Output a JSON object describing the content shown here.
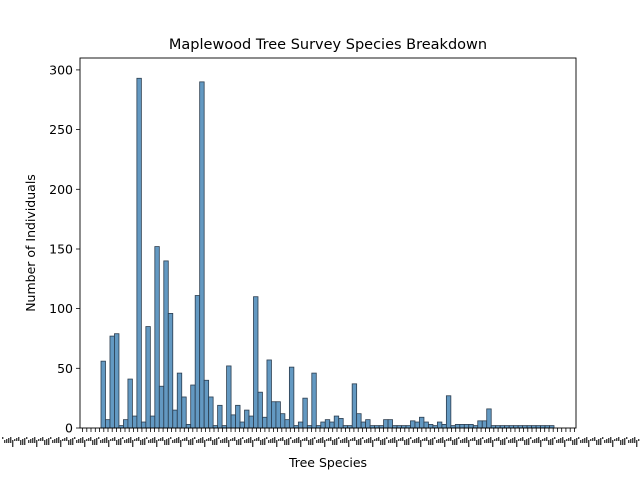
{
  "chart_data": {
    "type": "bar",
    "title": "Maplewood Tree Survey Species Breakdown",
    "xlabel": "Tree Species",
    "ylabel": "Number of Individuals",
    "ylim": [
      0,
      310
    ],
    "yticks": [
      0,
      50,
      100,
      150,
      200,
      250,
      300
    ],
    "grid": false,
    "legend": "none",
    "x_tick_labels_legible": false,
    "bar_color": "#5b93bf",
    "bar_edge_color": "#2b3d4f",
    "series": [
      {
        "values": [
          56,
          7,
          77,
          79,
          2,
          7,
          41,
          10,
          293,
          5,
          85,
          10,
          152,
          35,
          140,
          96,
          15,
          46,
          26,
          3,
          36,
          111,
          290,
          40,
          26,
          2,
          19,
          2,
          52,
          11,
          19,
          5,
          15,
          10,
          110,
          30,
          9,
          57,
          22,
          22,
          12,
          7,
          51,
          2,
          5,
          25,
          2,
          46,
          2,
          5,
          7,
          5,
          10,
          8,
          2,
          2,
          37,
          12,
          5,
          7,
          2,
          2,
          2,
          7,
          7,
          2,
          2,
          2,
          2,
          6,
          5,
          9,
          5,
          3,
          2,
          5,
          3,
          27,
          2,
          3,
          3,
          3,
          3,
          2,
          6,
          6,
          16,
          2,
          2,
          2,
          2,
          2,
          2,
          2,
          2,
          2,
          2,
          2,
          2,
          2,
          2
        ]
      }
    ]
  }
}
